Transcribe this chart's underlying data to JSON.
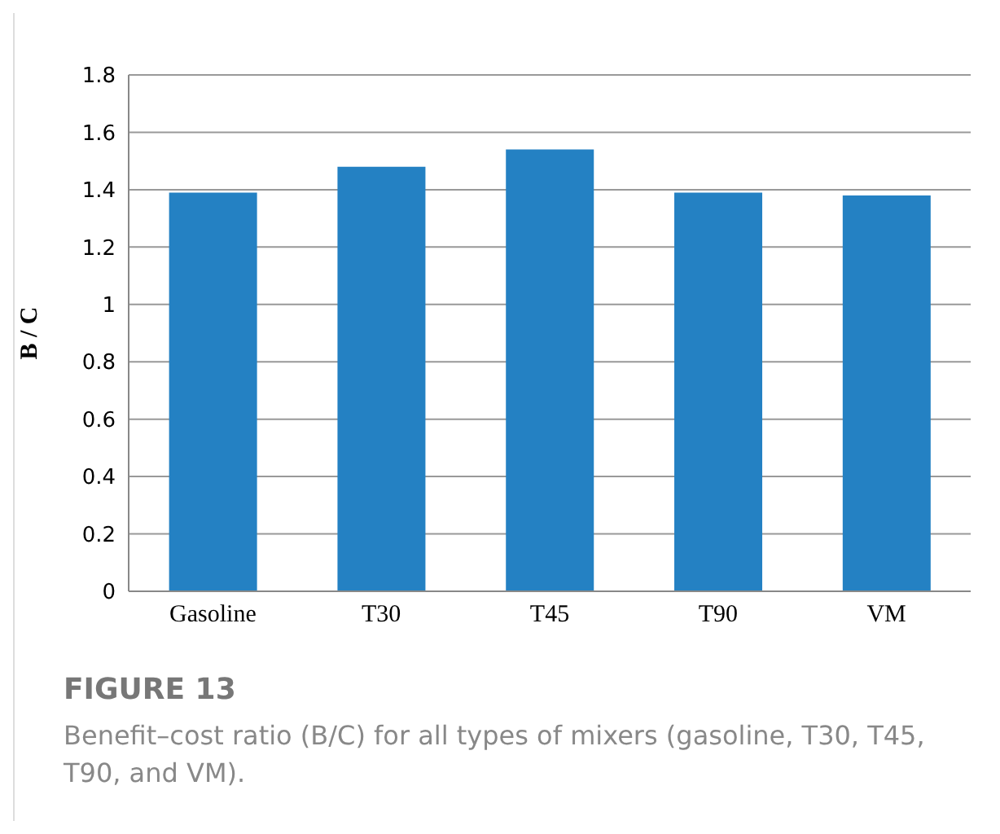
{
  "chart_data": {
    "type": "bar",
    "title": "FIGURE 13",
    "subtitle": "Benefit–cost ratio (B/C) for all types of mixers (gasoline, T30, T45, T90, and VM).",
    "ylabel": "B / C",
    "categories": [
      "Gasoline",
      "T30",
      "T45",
      "T90",
      "VM"
    ],
    "values": [
      1.39,
      1.48,
      1.54,
      1.39,
      1.38
    ],
    "color": "#2481c3",
    "ylim": [
      0,
      1.8
    ],
    "yticks": [
      0,
      0.2,
      0.4,
      0.6,
      0.8,
      1,
      1.2,
      1.4,
      1.6,
      1.8
    ],
    "grid": "y"
  }
}
